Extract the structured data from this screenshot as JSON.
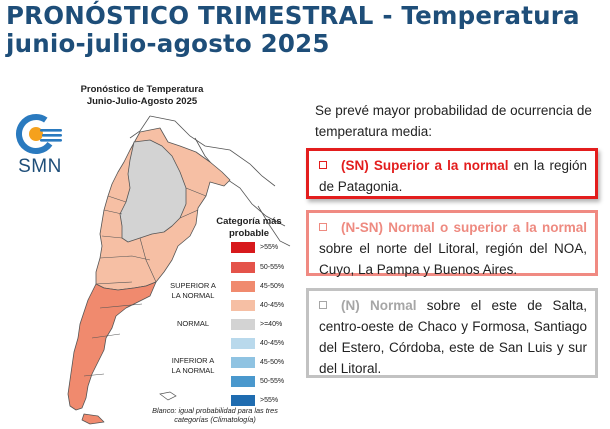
{
  "title": {
    "line1": "PRONÓSTICO TRIMESTRAL - Temperatura",
    "line2": "junio-julio-agosto 2025"
  },
  "logo": {
    "text": "SMN",
    "color": "#1e4e79",
    "accent": "#f5a11c"
  },
  "map": {
    "title_line1": "Pronóstico de Temperatura",
    "title_line2": "Junio-Julio-Agosto 2025",
    "regions": [
      {
        "name": "Patagonia",
        "category": "SN",
        "color": "#f08a6e"
      },
      {
        "name": "norte del Litoral, NOA, Cuyo, La Pampa y Buenos Aires",
        "category": "N-SN",
        "color": "#f6bfa4"
      },
      {
        "name": "este de Salta, Chaco, Formosa, Santiago del Estero, Córdoba, San Luis, sur del Litoral",
        "category": "N",
        "color": "#d3d3d3"
      }
    ],
    "footnote": "Blanco: igual probabilidad para las tres categorías (Climatología)"
  },
  "legend": {
    "title_line1": "Categoría más",
    "title_line2": "probable",
    "groups": [
      {
        "label_line1": "SUPERIOR A",
        "label_line2": "LA NORMAL"
      },
      {
        "label_line1": "NORMAL",
        "label_line2": ""
      },
      {
        "label_line1": "INFERIOR A",
        "label_line2": "LA NORMAL"
      }
    ],
    "items": [
      {
        "label": ">55%",
        "color": "#d7191c"
      },
      {
        "label": "50-55%",
        "color": "#e4534a"
      },
      {
        "label": "45-50%",
        "color": "#f08a6e"
      },
      {
        "label": "40-45%",
        "color": "#f6bfa4"
      },
      {
        "label": ">=40%",
        "color": "#d3d3d3"
      },
      {
        "label": "40-45%",
        "color": "#b9d9ec"
      },
      {
        "label": "45-50%",
        "color": "#8fc3e2"
      },
      {
        "label": "50-55%",
        "color": "#4a98cd"
      },
      {
        "label": ">55%",
        "color": "#1f6cb0"
      }
    ]
  },
  "intro": {
    "text": "Se prevé mayor probabilidad de ocurrencia de temperatura media:"
  },
  "boxes": {
    "sn": {
      "highlight": "(SN) Superior a la normal",
      "rest": " en la región de Patagonia.",
      "color": "#e31d1d"
    },
    "nsn": {
      "highlight": "(N-SN) Normal o superior a la normal",
      "rest": " sobre el norte del Litoral, región del NOA, Cuyo, La Pampa y Buenos Aires.",
      "color": "#f08a82"
    },
    "n": {
      "highlight": "(N) Normal",
      "rest": " sobre el este de Salta, centro-oeste de Chaco y Formosa, Santiago del Estero, Córdoba, este de San Luis y sur del Litoral.",
      "color": "#c2c2c2"
    }
  }
}
